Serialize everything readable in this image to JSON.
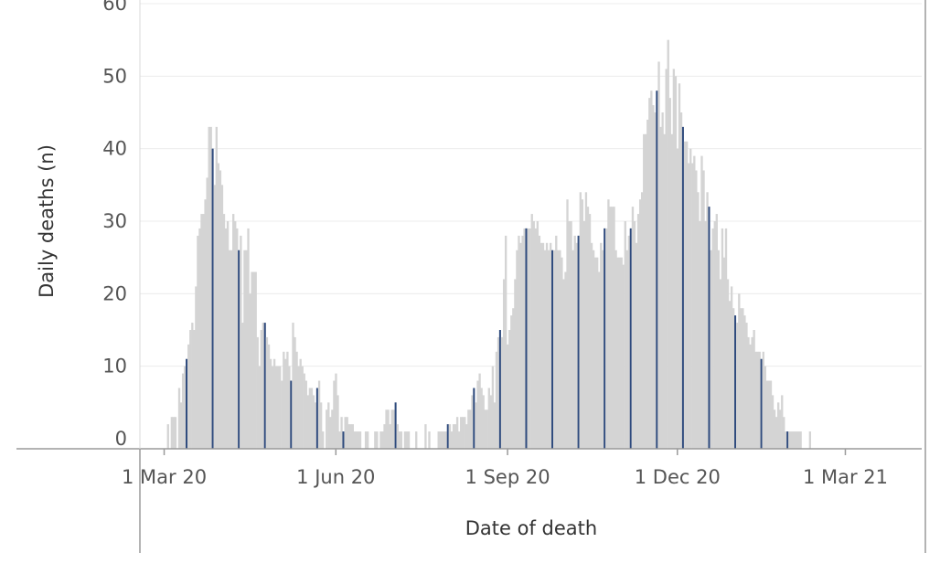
{
  "chart_data": {
    "type": "bar",
    "title": "",
    "xlabel": "Date of death",
    "ylabel": "Daily deaths (n)",
    "ylim": [
      0,
      60
    ],
    "yticks": [
      0,
      10,
      20,
      30,
      40,
      50,
      60
    ],
    "ytick_labels": [
      "0",
      "10",
      "20",
      "30",
      "40",
      "50",
      "60"
    ],
    "x_range": [
      "2020-02-17",
      "2021-04-07"
    ],
    "xticks": [
      {
        "date": "2020-03-01",
        "label": "1 Mar 20"
      },
      {
        "date": "2020-06-01",
        "label": "1 Jun 20"
      },
      {
        "date": "2020-09-01",
        "label": "1 Sep 20"
      },
      {
        "date": "2020-12-01",
        "label": "1 Dec 20"
      },
      {
        "date": "2021-03-01",
        "label": "1 Mar 21"
      }
    ],
    "grid": true,
    "bar_color": "#d4d4d4",
    "highlight_color": "#2e4a7d",
    "first_date": "2020-03-03",
    "values": [
      2,
      0,
      3,
      3,
      3,
      0,
      7,
      5,
      9,
      10,
      11,
      13,
      15,
      16,
      15,
      21,
      28,
      29,
      31,
      31,
      33,
      36,
      43,
      43,
      40,
      35,
      43,
      38,
      37,
      35,
      31,
      29,
      30,
      26,
      26,
      31,
      30,
      29,
      26,
      28,
      16,
      26,
      26,
      29,
      20,
      23,
      23,
      23,
      14,
      10,
      15,
      16,
      16,
      14,
      13,
      11,
      10,
      11,
      10,
      10,
      10,
      8,
      12,
      11,
      12,
      10,
      8,
      16,
      14,
      12,
      10,
      11,
      10,
      9,
      8,
      6,
      7,
      7,
      6,
      5,
      7,
      8,
      5,
      1,
      0,
      4,
      5,
      3,
      4,
      8,
      9,
      6,
      1,
      3,
      1,
      3,
      3,
      2,
      2,
      2,
      1,
      1,
      1,
      1,
      0,
      0,
      1,
      1,
      0,
      0,
      0,
      1,
      1,
      0,
      1,
      1,
      2,
      4,
      4,
      2,
      4,
      4,
      5,
      2,
      1,
      1,
      0,
      1,
      1,
      1,
      0,
      0,
      0,
      1,
      0,
      0,
      0,
      0,
      2,
      0,
      1,
      0,
      0,
      0,
      0,
      1,
      1,
      1,
      1,
      1,
      2,
      2,
      1,
      2,
      2,
      3,
      1,
      3,
      3,
      3,
      2,
      4,
      4,
      6,
      7,
      5,
      8,
      9,
      7,
      6,
      4,
      4,
      7,
      6,
      10,
      5,
      12,
      14,
      15,
      14,
      22,
      28,
      13,
      15,
      17,
      18,
      22,
      26,
      28,
      27,
      28,
      29,
      29,
      29,
      29,
      31,
      30,
      29,
      30,
      28,
      27,
      27,
      26,
      27,
      26,
      27,
      26,
      26,
      28,
      26,
      26,
      25,
      22,
      23,
      33,
      30,
      30,
      26,
      28,
      27,
      28,
      34,
      33,
      30,
      34,
      32,
      31,
      27,
      26,
      25,
      25,
      23,
      27,
      26,
      29,
      29,
      33,
      32,
      32,
      32,
      26,
      25,
      25,
      25,
      24,
      30,
      26,
      28,
      29,
      32,
      30,
      27,
      31,
      33,
      34,
      42,
      42,
      44,
      47,
      48,
      46,
      45,
      48,
      52,
      43,
      45,
      42,
      51,
      55,
      47,
      42,
      51,
      50,
      40,
      49,
      45,
      43,
      41,
      41,
      38,
      40,
      38,
      39,
      37,
      34,
      30,
      39,
      37,
      30,
      34,
      32,
      26,
      29,
      30,
      31,
      26,
      22,
      29,
      25,
      29,
      22,
      19,
      21,
      18,
      17,
      16,
      20,
      18,
      18,
      17,
      16,
      14,
      13,
      14,
      15,
      12,
      12,
      12,
      11,
      12,
      10,
      8,
      8,
      8,
      6,
      4,
      3,
      5,
      4,
      6,
      3,
      1,
      1,
      1,
      1,
      1,
      1,
      1,
      1,
      1,
      0,
      0,
      0,
      0,
      1
    ],
    "highlight_interval_days": 14,
    "highlight_first_index": 10
  }
}
